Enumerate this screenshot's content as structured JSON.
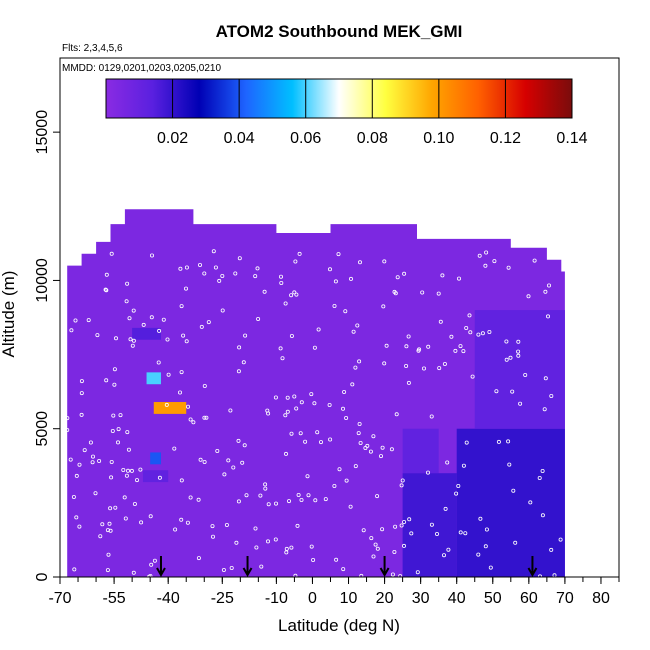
{
  "chart_data": {
    "type": "heatmap",
    "title": "ATOM2 Southbound MEK_GMI",
    "flights_note": "Flts: 2,3,4,5,6",
    "dates_note": "MMDD: 0129,0201,0203,0205,0210",
    "xlabel": "Latitude (deg N)",
    "ylabel": "Altitude (m)",
    "xlim": [
      -70,
      85
    ],
    "ylim": [
      0,
      17500
    ],
    "x_ticks": [
      -70,
      -55,
      -40,
      -25,
      -10,
      0,
      10,
      20,
      30,
      40,
      50,
      60,
      70,
      80
    ],
    "x_minor_step": 5,
    "y_ticks": [
      0,
      5000,
      10000,
      15000
    ],
    "colorbar": {
      "range": [
        0,
        0.14
      ],
      "ticks": [
        0.02,
        0.04,
        0.06,
        0.08,
        0.1,
        0.12,
        0.14
      ],
      "tick_labels": [
        "0.02",
        "0.04",
        "0.06",
        "0.08",
        "0.10",
        "0.12",
        "0.14"
      ],
      "colors": [
        "#8a2be2",
        "#5a20e0",
        "#0000b4",
        "#1e64ff",
        "#00bfff",
        "#ffffff",
        "#ffff40",
        "#ffa500",
        "#ff6000",
        "#d60000",
        "#7a0c0c"
      ],
      "position": "top"
    },
    "background_value": 0.004,
    "arrows_lat": [
      -42,
      -18,
      20,
      61
    ],
    "grid": false,
    "patches": [
      {
        "lat0": -50,
        "lat1": -42,
        "alt0": 8000,
        "alt1": 8400,
        "value": 0.015
      },
      {
        "lat0": -46,
        "lat1": -42,
        "alt0": 6500,
        "alt1": 6900,
        "value": 0.06
      },
      {
        "lat0": -44,
        "lat1": -35,
        "alt0": 5500,
        "alt1": 5900,
        "value": 0.1
      },
      {
        "lat0": -45,
        "lat1": -42,
        "alt0": 3800,
        "alt1": 4200,
        "value": 0.04
      },
      {
        "lat0": -47,
        "lat1": -40,
        "alt0": 3200,
        "alt1": 3600,
        "value": 0.012
      },
      {
        "lat0": 25,
        "lat1": 35,
        "alt0": 3500,
        "alt1": 5000,
        "value": 0.012
      },
      {
        "lat0": 25,
        "lat1": 40,
        "alt0": 0,
        "alt1": 3500,
        "value": 0.018
      },
      {
        "lat0": 40,
        "lat1": 70,
        "alt0": 0,
        "alt1": 5000,
        "value": 0.02
      },
      {
        "lat0": 45,
        "lat1": 70,
        "alt0": 5000,
        "alt1": 9000,
        "value": 0.012
      }
    ]
  }
}
